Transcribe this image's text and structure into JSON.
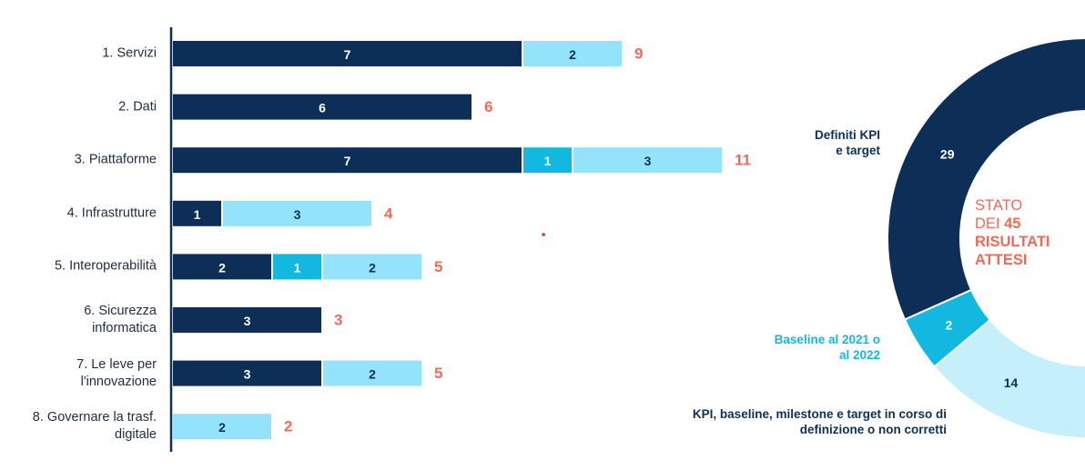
{
  "chart_data": [
    {
      "type": "stacked-bar",
      "categories": [
        "1. Servizi",
        "2. Dati",
        "3. Piattaforme",
        "4. Infrastrutture",
        "5. Interoperabilità",
        "6. Sicurezza informatica",
        "7. Le leve per l'innovazione",
        "8. Governare la trasf. digitale"
      ],
      "series": [
        {
          "color": "#0d2f57",
          "label_color": "#ffffff",
          "values": [
            7,
            6,
            7,
            1,
            2,
            3,
            3,
            null
          ]
        },
        {
          "color": "#12b8e0",
          "label_color": "#ffffff",
          "values": [
            null,
            null,
            1,
            null,
            1,
            null,
            null,
            null
          ]
        },
        {
          "color": "#93e3fa",
          "label_color": "#0d2f57",
          "values": [
            2,
            null,
            3,
            3,
            2,
            null,
            2,
            2
          ]
        }
      ],
      "totals": [
        9,
        6,
        11,
        4,
        5,
        3,
        5,
        2
      ],
      "total_color": "#f06a5a"
    },
    {
      "type": "donut",
      "center": {
        "prefix": "STATO DEI",
        "total": 45,
        "suffix": "RISULTATI ATTESI"
      },
      "center_color": "#f06a5a",
      "categories": [
        "Definiti KPI e target",
        "Baseline al 2021 o al 2022",
        "KPI, baseline, milestone e target in corso di definizione o non corretti"
      ],
      "values": [
        29,
        2,
        14
      ],
      "colors": [
        "#0d2f57",
        "#12b8e0",
        "#c6effc"
      ],
      "value_label_colors": [
        "#ffffff",
        "#ffffff",
        "#0d2f57"
      ],
      "label_colors": [
        "#0d2f57",
        "#12b8e0",
        "#0d2f57"
      ]
    }
  ]
}
